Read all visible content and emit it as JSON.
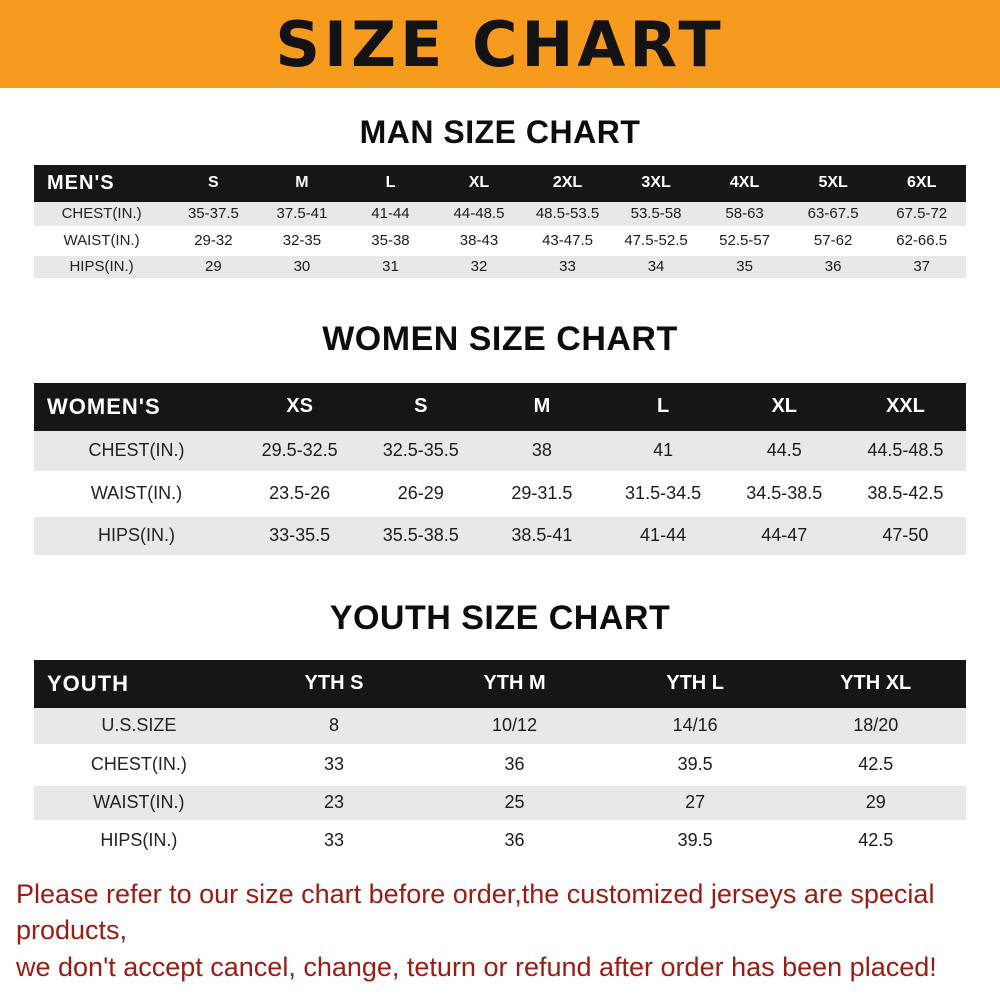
{
  "banner": {
    "title": "SIZE CHART"
  },
  "colors": {
    "banner_orange": "#F79B1E",
    "notice_red": "#9C1B12"
  },
  "sections": [
    {
      "heading": "MAN SIZE CHART",
      "table": {
        "header": [
          "MEN'S",
          "S",
          "M",
          "L",
          "XL",
          "2XL",
          "3XL",
          "4XL",
          "5XL",
          "6XL"
        ],
        "rows": [
          [
            "CHEST(IN.)",
            "35-37.5",
            "37.5-41",
            "41-44",
            "44-48.5",
            "48.5-53.5",
            "53.5-58",
            "58-63",
            "63-67.5",
            "67.5-72"
          ],
          [
            "WAIST(IN.)",
            "29-32",
            "32-35",
            "35-38",
            "38-43",
            "43-47.5",
            "47.5-52.5",
            "52.5-57",
            "57-62",
            "62-66.5"
          ],
          [
            "HIPS(IN.)",
            "29",
            "30",
            "31",
            "32",
            "33",
            "34",
            "35",
            "36",
            "37"
          ]
        ]
      }
    },
    {
      "heading": "WOMEN SIZE CHART",
      "table": {
        "header": [
          "WOMEN'S",
          "XS",
          "S",
          "M",
          "L",
          "XL",
          "XXL"
        ],
        "rows": [
          [
            "CHEST(IN.)",
            "29.5-32.5",
            "32.5-35.5",
            "38",
            "41",
            "44.5",
            "44.5-48.5"
          ],
          [
            "WAIST(IN.)",
            "23.5-26",
            "26-29",
            "29-31.5",
            "31.5-34.5",
            "34.5-38.5",
            "38.5-42.5"
          ],
          [
            "HIPS(IN.)",
            "33-35.5",
            "35.5-38.5",
            "38.5-41",
            "41-44",
            "44-47",
            "47-50"
          ]
        ]
      }
    },
    {
      "heading": "YOUTH SIZE CHART",
      "table": {
        "header": [
          "YOUTH",
          "YTH S",
          "YTH M",
          "YTH L",
          "YTH XL"
        ],
        "rows": [
          [
            "U.S.SIZE",
            "8",
            "10/12",
            "14/16",
            "18/20"
          ],
          [
            "CHEST(IN.)",
            "33",
            "36",
            "39.5",
            "42.5"
          ],
          [
            "WAIST(IN.)",
            "23",
            "25",
            "27",
            "29"
          ],
          [
            "HIPS(IN.)",
            "33",
            "36",
            "39.5",
            "42.5"
          ]
        ]
      }
    }
  ],
  "notice": {
    "line1": "Please refer to our size chart before order,the customized jerseys are special products,",
    "line2": "we don't accept cancel, change, teturn or refund after order has been placed!"
  }
}
